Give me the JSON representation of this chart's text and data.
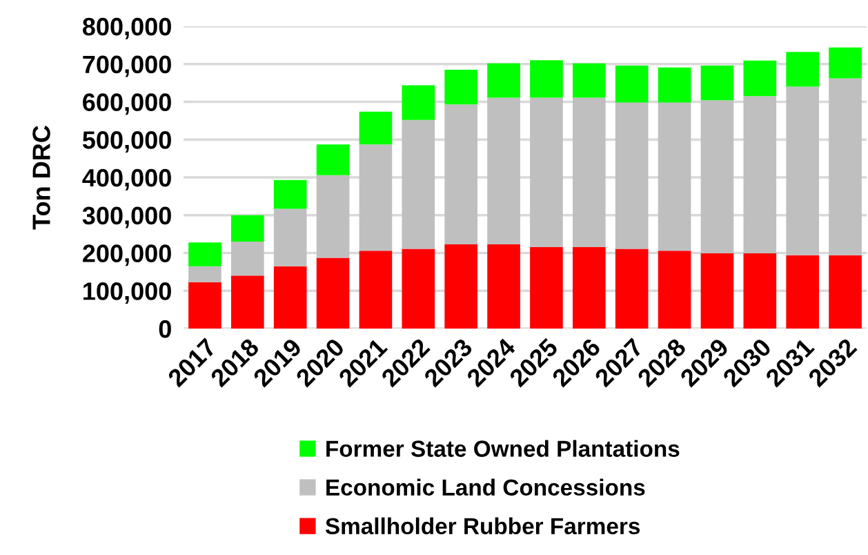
{
  "chart_data": {
    "type": "bar",
    "stacked": true,
    "ylabel": "Ton DRC",
    "categories": [
      "2017",
      "2018",
      "2019",
      "2020",
      "2021",
      "2022",
      "2023",
      "2024",
      "2025",
      "2026",
      "2027",
      "2028",
      "2029",
      "2030",
      "2031",
      "2032"
    ],
    "series": [
      {
        "name": "Smallholder Rubber Farmers",
        "color": "#ff0000",
        "values": [
          123000,
          140000,
          165000,
          187000,
          206000,
          211000,
          223000,
          223000,
          216000,
          216000,
          211000,
          206000,
          199000,
          199000,
          194000,
          194000
        ]
      },
      {
        "name": "Economic Land Concessions",
        "color": "#bfbfbf",
        "values": [
          42000,
          90000,
          152000,
          219000,
          281000,
          341000,
          370000,
          388000,
          395000,
          395000,
          387000,
          392000,
          405000,
          416000,
          446000,
          468000
        ]
      },
      {
        "name": "Former State Owned Plantations",
        "color": "#00ff00",
        "values": [
          63000,
          70000,
          76000,
          81000,
          87000,
          92000,
          92000,
          91000,
          99000,
          91000,
          98000,
          93000,
          92000,
          94000,
          92000,
          82000
        ]
      }
    ],
    "ylim": [
      0,
      800000
    ],
    "yticks": [
      {
        "value": 0,
        "label": "0"
      },
      {
        "value": 100000,
        "label": "100,000"
      },
      {
        "value": 200000,
        "label": "200,000"
      },
      {
        "value": 300000,
        "label": "300,000"
      },
      {
        "value": 400000,
        "label": "400,000"
      },
      {
        "value": 500000,
        "label": "500,000"
      },
      {
        "value": 600000,
        "label": "600,000"
      },
      {
        "value": 700000,
        "label": "700,000"
      },
      {
        "value": 800000,
        "label": "800,000"
      }
    ],
    "grid": "y",
    "legend": "bottom"
  }
}
